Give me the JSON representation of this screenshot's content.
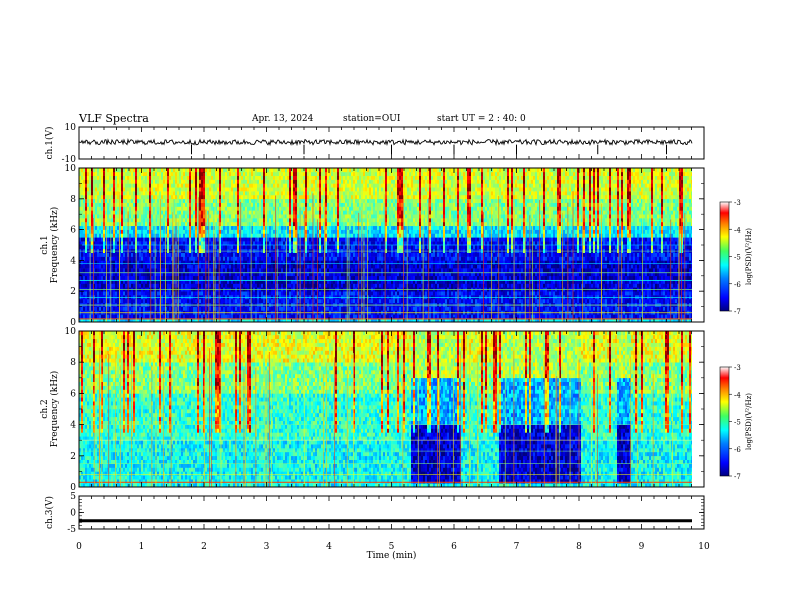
{
  "header": {
    "title": "VLF Spectra",
    "date": "Apr. 13, 2024",
    "station": "station=OUI",
    "start": "start UT = 2 : 40: 0"
  },
  "chart_data": [
    {
      "type": "line",
      "panel": "ch1-waveform",
      "ylabel": "ch.1(V)",
      "ylim": [
        -10,
        10
      ],
      "yticks": [
        "10",
        "-10"
      ],
      "xlim": [
        0,
        10
      ],
      "description_values": {
        "baseline": 0,
        "spike_times_min": [
          1.8,
          3.6,
          5.0,
          6.0,
          7.0,
          8.3,
          9.4
        ]
      }
    },
    {
      "type": "heatmap",
      "panel": "ch1-spectrogram",
      "ylabel": "ch.1\nFrequency (kHz)",
      "ylim": [
        0,
        10
      ],
      "yticks": [
        "0",
        "2",
        "4",
        "6",
        "8",
        "10"
      ],
      "xlim": [
        0,
        9.85
      ],
      "colorbar": {
        "label": "log(PSD)(V²/Hz)",
        "range": [
          -7,
          -3
        ],
        "ticks": [
          "-3",
          "-4",
          "-5",
          "-6",
          "-7"
        ]
      },
      "quiet_band_khz": [
        0.3,
        5.5
      ]
    },
    {
      "type": "heatmap",
      "panel": "ch2-spectrogram",
      "ylabel": "ch.2\nFrequency (kHz)",
      "ylim": [
        0,
        10
      ],
      "yticks": [
        "0",
        "2",
        "4",
        "6",
        "8",
        "10"
      ],
      "xlim": [
        0,
        9.85
      ],
      "colorbar": {
        "label": "log(PSD)(V²/Hz)",
        "range": [
          -7,
          -3
        ],
        "ticks": [
          "-3",
          "-4",
          "-5",
          "-6",
          "-7"
        ]
      },
      "quiet_intervals_min": [
        [
          5.3,
          6.1
        ],
        [
          6.7,
          8.0
        ],
        [
          8.6,
          8.8
        ]
      ]
    },
    {
      "type": "line",
      "panel": "ch3-waveform",
      "ylabel": "ch.3(V)",
      "ylim": [
        -5,
        5
      ],
      "yticks": [
        "5",
        "0",
        "-5"
      ],
      "xlabel": "Time (min)",
      "xticks": [
        "0",
        "1",
        "2",
        "3",
        "4",
        "5",
        "6",
        "7",
        "8",
        "9",
        "10"
      ],
      "xlim": [
        0,
        10
      ],
      "level": -2.5
    }
  ],
  "colors": {
    "scale": [
      "#00007f",
      "#0000ff",
      "#0080ff",
      "#00ffff",
      "#80ff80",
      "#ffff00",
      "#ff8000",
      "#ff0000",
      "#7f0000"
    ]
  }
}
